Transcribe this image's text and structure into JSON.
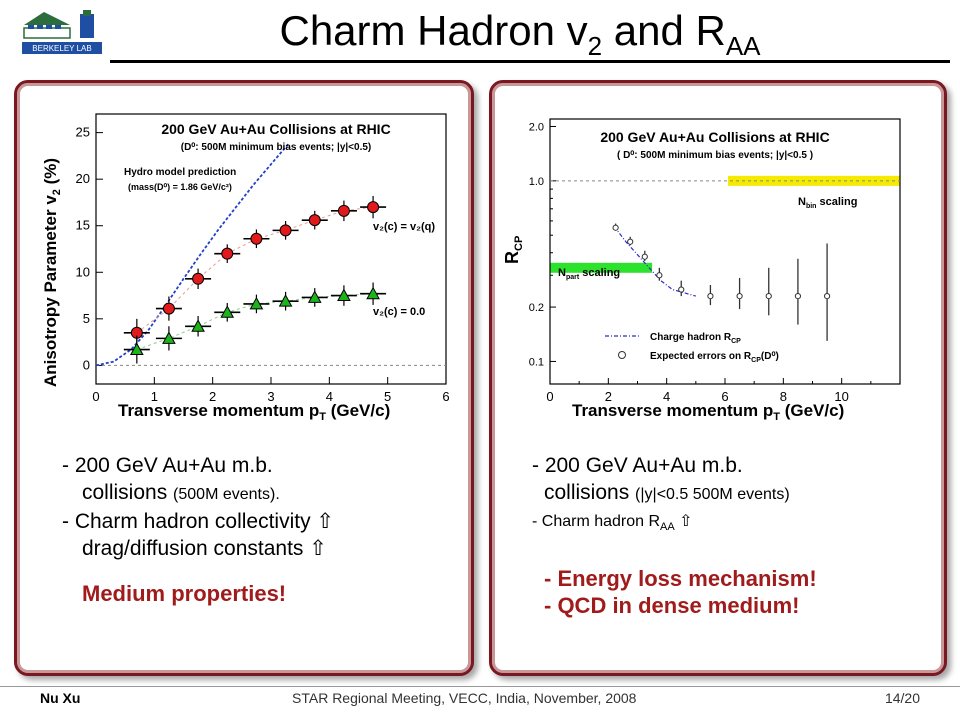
{
  "slide": {
    "title_main": "Charm Hadron v",
    "title_sub1": "2",
    "title_mid": " and R",
    "title_sub2": "AA",
    "logo_text": "BERKELEY LAB"
  },
  "left_text": {
    "line1": "- 200 GeV Au+Au m.b.",
    "line2a": "collisions ",
    "line2b": "(500M events).",
    "line3": "- Charm hadron collectivity ⇧",
    "line4": "drag/diffusion constants ⇧",
    "line5": "Medium properties!"
  },
  "right_text": {
    "line1": "- 200 GeV Au+Au m.b.",
    "line2a": "collisions ",
    "line2b": "(|y|<0.5 500M events)",
    "line3a": "- Charm hadron R",
    "line3sub": "AA",
    "line3b": " ⇧",
    "line4": "- Energy loss mechanism!",
    "line5": "- QCD in dense medium!"
  },
  "footer": {
    "author": "Nu Xu",
    "meeting": "STAR Regional Meeting, VECC, India, November, 2008",
    "page": "14/20"
  },
  "chart_data": [
    {
      "type": "scatter",
      "title": "200 GeV Au+Au Collisions at RHIC",
      "subtitle": "(D⁰: 500M minimum bias events; |y|<0.5)",
      "xlabel": "Transverse momentum p",
      "xlabel_sub": "T",
      "xlabel_unit": " (GeV/c)",
      "ylabel": "Anisotropy Parameter v",
      "ylabel_sub": "2",
      "ylabel_unit": " (%)",
      "xlim": [
        0,
        6
      ],
      "ylim": [
        -2,
        27
      ],
      "xticks": [
        0,
        1,
        2,
        3,
        4,
        5,
        6
      ],
      "yticks": [
        0,
        5,
        10,
        15,
        20,
        25
      ],
      "hydro_label": "Hydro model prediction",
      "hydro_mass": "(mass(D⁰) = 1.86 GeV/c²)",
      "series": [
        {
          "name": "v₂(c) = v₂(q)",
          "color": "#e31a1c",
          "marker": "circle",
          "x": [
            0.7,
            1.25,
            1.75,
            2.25,
            2.75,
            3.25,
            3.75,
            4.25,
            4.75
          ],
          "y": [
            3.5,
            6.1,
            9.3,
            12.0,
            13.6,
            14.5,
            15.6,
            16.6,
            17.0
          ],
          "err": [
            1.5,
            1.3,
            1.1,
            1.0,
            1.0,
            1.0,
            1.0,
            1.1,
            1.2
          ]
        },
        {
          "name": "v₂(c) = 0.0",
          "color": "#1db31d",
          "marker": "triangle",
          "x": [
            0.7,
            1.25,
            1.75,
            2.25,
            2.75,
            3.25,
            3.75,
            4.25,
            4.75
          ],
          "y": [
            1.7,
            2.9,
            4.2,
            5.7,
            6.6,
            6.9,
            7.3,
            7.5,
            7.7
          ],
          "err": [
            1.5,
            1.3,
            1.1,
            1.0,
            1.0,
            1.0,
            1.0,
            1.1,
            1.2
          ]
        }
      ],
      "hydro_curve": {
        "x": [
          0,
          0.3,
          0.6,
          0.9,
          1.2,
          1.5,
          1.8,
          2.1,
          2.4,
          2.7,
          3.0,
          3.3
        ],
        "y": [
          0,
          0.4,
          1.7,
          3.8,
          6.5,
          9.3,
          12.0,
          14.6,
          17.0,
          19.4,
          21.6,
          23.8
        ]
      },
      "reference_line_y": 0
    },
    {
      "type": "scatter",
      "title": "200 GeV Au+Au Collisions at RHIC",
      "subtitle": "( D⁰: 500M minimum bias events; |y|<0.5 )",
      "xlabel": "Transverse momentum p",
      "xlabel_sub": "T",
      "xlabel_unit": " (GeV/c)",
      "ylabel": "R",
      "ylabel_sub": "CP",
      "xlim": [
        0,
        12
      ],
      "ylim": [
        0.075,
        2.2
      ],
      "yscale": "log",
      "xticks": [
        0,
        2,
        4,
        6,
        8,
        10
      ],
      "ytick_labels": [
        "2.0",
        "1.0",
        "0.2",
        "0.1"
      ],
      "yticks": [
        2.0,
        1.0,
        0.2,
        0.1
      ],
      "nbin_label": "N",
      "nbin_sub": "bin",
      "nbin_tail": " scaling",
      "npart_label": "N",
      "npart_sub": "part",
      "npart_tail": " scaling",
      "nbin_band": {
        "x": [
          6.1,
          12.0
        ],
        "y": 1.0,
        "color": "#f5ea00"
      },
      "npart_band": {
        "x": [
          0.0,
          3.5
        ],
        "y": 0.33,
        "color": "#2ce22c"
      },
      "legend": [
        {
          "label": "Charge hadron R",
          "sub": "CP"
        },
        {
          "label": "Expected errors on R",
          "sub": "CP",
          "tail": "(D⁰)"
        }
      ],
      "series": [
        {
          "name": "Charge hadron R_CP",
          "x": [
            2.2,
            2.6,
            3.0,
            3.4,
            3.8,
            4.2,
            4.6,
            5.0
          ],
          "y": [
            0.56,
            0.46,
            0.39,
            0.33,
            0.28,
            0.25,
            0.24,
            0.23
          ]
        },
        {
          "name": "Expected errors on R_CP(D⁰)",
          "x": [
            2.25,
            2.75,
            3.25,
            3.75,
            4.5,
            5.5,
            6.5,
            7.5,
            8.5,
            9.5
          ],
          "y": [
            0.55,
            0.46,
            0.38,
            0.3,
            0.25,
            0.23,
            0.23,
            0.23,
            0.23,
            0.23
          ],
          "err_lo": [
            0.02,
            0.02,
            0.02,
            0.02,
            0.02,
            0.025,
            0.035,
            0.05,
            0.07,
            0.1
          ],
          "err_hi": [
            0.03,
            0.03,
            0.03,
            0.03,
            0.03,
            0.035,
            0.06,
            0.1,
            0.14,
            0.22
          ]
        }
      ],
      "reference_line_y": 1.0
    }
  ]
}
